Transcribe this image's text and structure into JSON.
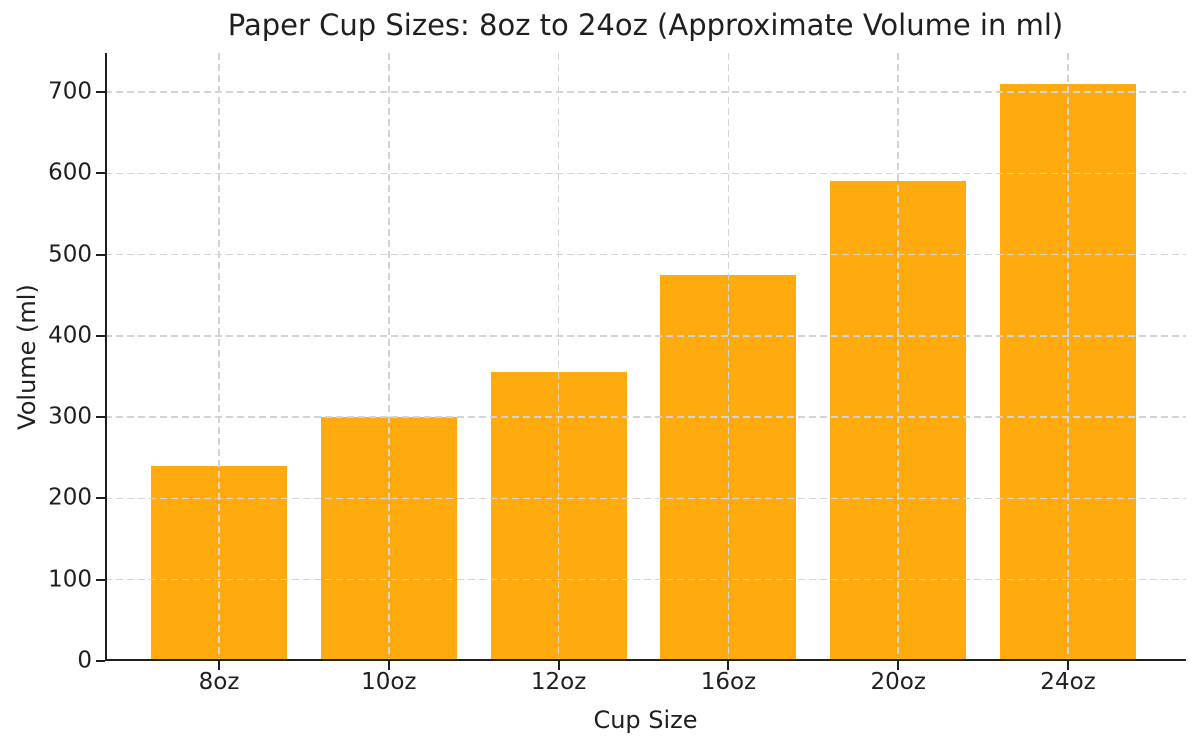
{
  "chart_data": {
    "type": "bar",
    "title": "Paper Cup Sizes: 8oz to 24oz (Approximate Volume in ml)",
    "xlabel": "Cup Size",
    "ylabel": "Volume (ml)",
    "categories": [
      "8oz",
      "10oz",
      "12oz",
      "16oz",
      "20oz",
      "24oz"
    ],
    "values": [
      240,
      300,
      355,
      475,
      590,
      710
    ],
    "yticks": [
      0,
      100,
      200,
      300,
      400,
      500,
      600,
      700
    ],
    "ylim": [
      0,
      748
    ],
    "grid": true,
    "grid_style": "dashed",
    "grid_above_bars": true,
    "legend": "none",
    "bar_color": "#FFAB10",
    "grid_color": "#d4d4d4",
    "axis_color": "#1f1f1f",
    "text_color": "#1f1f1f",
    "background_color": "#ffffff"
  }
}
